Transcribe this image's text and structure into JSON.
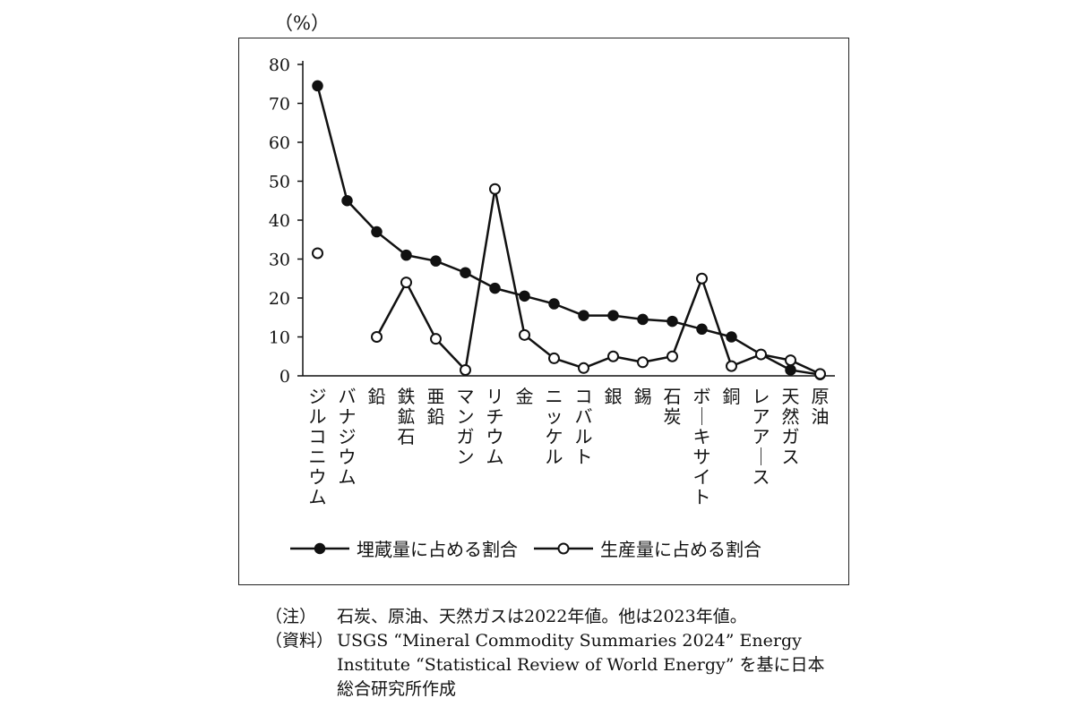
{
  "chart_data": {
    "type": "line",
    "ylabel": "（%）",
    "ylim": [
      0,
      80
    ],
    "yticks": [
      0,
      10,
      20,
      30,
      40,
      50,
      60,
      70,
      80
    ],
    "categories": [
      "ジルコニウム",
      "バナジウム",
      "鉛",
      "鉄鉱石",
      "亜鉛",
      "マンガン",
      "リチウム",
      "金",
      "ニッケル",
      "コバルト",
      "銀",
      "錫",
      "石炭",
      "ボーキサイト",
      "銅",
      "レアアース",
      "天然ガス",
      "原油"
    ],
    "series": [
      {
        "name": "埋蔵量に占める割合",
        "marker": "filled",
        "values": [
          74.5,
          45,
          37,
          31,
          29.5,
          26.5,
          22.5,
          20.5,
          18.5,
          15.5,
          15.5,
          14.5,
          14,
          12,
          10,
          5.5,
          1.5,
          0.3
        ]
      },
      {
        "name": "生産量に占める割合",
        "marker": "open",
        "values": [
          31.5,
          null,
          10,
          24,
          9.5,
          1.5,
          48,
          10.5,
          4.5,
          2,
          5,
          3.5,
          5,
          25,
          2.5,
          5.5,
          4,
          0.5
        ]
      }
    ],
    "legend_position": "bottom",
    "grid": false
  },
  "legend": {
    "reserves": "埋蔵量に占める割合",
    "production": "生産量に占める割合"
  },
  "notes": {
    "note_key": "（注）",
    "note_text": "石炭、原油、天然ガスは2022年値。他は2023年値。",
    "source_key": "（資料）",
    "source_text": "USGS “Mineral Commodity Summaries 2024” Energy Institute “Statistical Review of World Energy” を基に日本総合研究所作成"
  },
  "colors": {
    "line": "#111111",
    "background": "#ffffff"
  }
}
